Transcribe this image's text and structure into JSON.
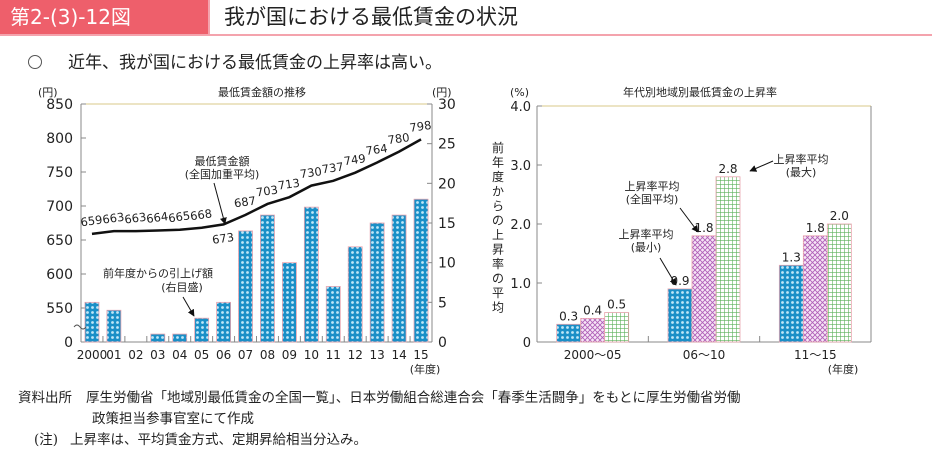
{
  "header": {
    "figure_number": "第2-(3)-12図",
    "title": "我が国における最低賃金の状況"
  },
  "lead_text": "近年、我が国における最低賃金の上昇率は高い。",
  "colors": {
    "header_bg": "#ee5f6b",
    "bar_blue": "#1a8fc7",
    "bar_purple": "#c98bd0",
    "bar_green": "#7cc47a"
  },
  "chart_data": [
    {
      "type": "bar+line",
      "title": "最低賃金額の推移",
      "left_unit": "(円)",
      "right_unit": "(円)",
      "xlabel": "(年度)",
      "categories": [
        "2000",
        "01",
        "02",
        "03",
        "04",
        "05",
        "06",
        "07",
        "08",
        "09",
        "10",
        "11",
        "12",
        "13",
        "14",
        "15"
      ],
      "left_ticks": [
        "850",
        "800",
        "750",
        "700",
        "650",
        "600",
        "550",
        "0"
      ],
      "left_tick_values": [
        850,
        800,
        750,
        700,
        650,
        600,
        550,
        500
      ],
      "right_ticks": [
        "30",
        "25",
        "20",
        "15",
        "10",
        "5",
        "0"
      ],
      "right_ylim": [
        0,
        30
      ],
      "left_ylim_display": [
        500,
        850
      ],
      "series": [
        {
          "name": "最低賃金額（全国加重平均）",
          "axis": "left",
          "kind": "line",
          "values": [
            659,
            663,
            663,
            664,
            665,
            668,
            673,
            687,
            703,
            713,
            730,
            737,
            749,
            764,
            780,
            798
          ]
        },
        {
          "name": "前年度からの引上げ額（右目盛）",
          "axis": "right",
          "kind": "bar",
          "values": [
            5,
            4,
            0,
            1,
            1,
            3,
            5,
            14,
            16,
            10,
            17,
            7,
            12,
            15,
            16,
            18
          ]
        }
      ],
      "annotations": {
        "line_label_1": "最低賃金額",
        "line_label_2": "(全国加重平均)",
        "bar_label_1": "前年度からの引上げ額",
        "bar_label_2": "(右目盛)"
      }
    },
    {
      "type": "bar",
      "title": "年代別地域別最低賃金の上昇率",
      "unit": "(%)",
      "ylabel": "前年度からの上昇率の平均",
      "xlabel": "(年度)",
      "ylim": [
        0,
        4.0
      ],
      "yticks": [
        "4.0",
        "3.0",
        "2.0",
        "1.0",
        "0"
      ],
      "categories": [
        "2000〜05",
        "06〜10",
        "11〜15"
      ],
      "series": [
        {
          "name": "上昇率平均（最小）",
          "values": [
            0.3,
            0.9,
            1.3
          ],
          "labels": [
            "0.3",
            "0.9",
            "1.3"
          ]
        },
        {
          "name": "上昇率平均（全国平均）",
          "values": [
            0.4,
            1.8,
            1.8
          ],
          "labels": [
            "0.4",
            "1.8",
            "1.8"
          ]
        },
        {
          "name": "上昇率平均（最大）",
          "values": [
            0.5,
            2.8,
            2.0
          ],
          "labels": [
            "0.5",
            "2.8",
            "2.0"
          ]
        }
      ],
      "annotations": {
        "min_1": "上昇率平均",
        "min_2": "(最小)",
        "avg_1": "上昇率平均",
        "avg_2": "(全国平均)",
        "max_1": "上昇率平均",
        "max_2": "(最大)"
      }
    }
  ],
  "footer": {
    "source_label": "資料出所",
    "source_line1": "厚生労働省「地域別最低賃金の全国一覧」、日本労働組合総連合会「春季生活闘争」をもとに厚生労働省労働",
    "source_line2": "政策担当参事官室にて作成",
    "note_label": "(注)",
    "note_text": "上昇率は、平均賃金方式、定期昇給相当分込み。"
  }
}
